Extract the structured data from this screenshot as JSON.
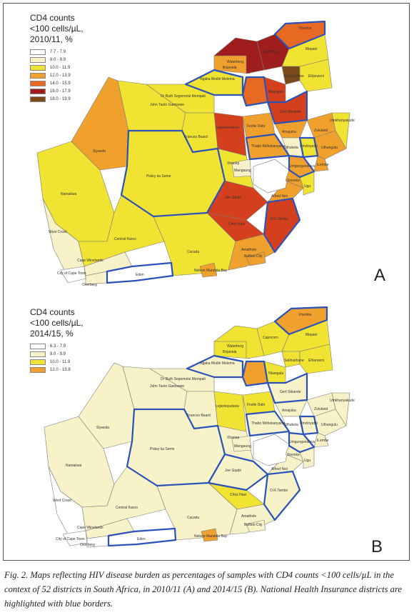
{
  "colors": {
    "c_white": "#ffffff",
    "c_lightyellow": "#f7f2c8",
    "c_yellow": "#f0e332",
    "c_orange": "#f0a02c",
    "c_orangered": "#e86a22",
    "c_red": "#d4401e",
    "c_darkred": "#a01d1d",
    "c_brown": "#7a4a1a",
    "nhi_border": "#2b52b8",
    "district_border": "#7a7a7a"
  },
  "panel_a": {
    "legend_title": "CD4 counts\n<100 cells/µL,\n2010/11, %",
    "legend": [
      {
        "label": "7.7 - 7.9",
        "color": "#ffffff"
      },
      {
        "label": "8.0 - 9.9",
        "color": "#f7f2c8"
      },
      {
        "label": "10.0 - 11.9",
        "color": "#f0e332"
      },
      {
        "label": "12.0 - 13.9",
        "color": "#f0a02c"
      },
      {
        "label": "14.0 - 15.9",
        "color": "#e86a22"
      },
      {
        "label": "16.0 - 17.9",
        "color": "#a01d1d"
      },
      {
        "label": "18.0 - 19.9",
        "color": "#7a4a1a"
      }
    ],
    "letter": "A",
    "districts": {
      "vhembe": "Vhembe",
      "capricorn": "Capricorn",
      "mopani": "Mopani",
      "ehlanzeni": "Ehlanzeni",
      "waterberg": "Waterberg",
      "sekhukhune": "Sekhukhune",
      "bojanala": "Bojanala",
      "ngaka": "Ngaka Modiri Molema",
      "nkangala": "Nkangala",
      "gertsibande": "Gert Sibande",
      "ruth": "Dr Ruth Segomotsi Mompati",
      "taolo": "John Taolo Gaetsewe",
      "lejweleputswa": "Lejweleputswa",
      "fezile": "Fezile Dabi",
      "thabo": "Thabo Mofutsanyane",
      "zululand": "Zululand",
      "umkhanyakude": "Umkhanyakude",
      "amajuba": "Amajuba",
      "uthukela": "Uthukela",
      "umzinyathi": "Umzinyathi",
      "uthungulu": "Uthungulu",
      "ilembe": "iLembe",
      "umgungundlovu": "Umgungundlovu",
      "sisonke": "Sisonke",
      "ugu": "Ugu",
      "ortambo": "O.R.Tambo",
      "alfrednzo": "Alfred Nzo",
      "siyanda": "Siyanda",
      "frances": "Frances Baard",
      "mangaung": "Mangaung",
      "xhariep": "Xhariep",
      "pixley": "Pixley ka Seme",
      "namakwa": "Namakwa",
      "joegqabi": "Joe Gqabi",
      "chrishani": "Chris Hani",
      "amathole": "Amathole",
      "buffalo": "Buffalo City",
      "cacadu": "Cacadu",
      "nelson": "Nelson Mandela Bay",
      "westcoast": "West Coast",
      "centralkaroo": "Central Karoo",
      "capewine": "Cape Winelands",
      "capetown": "City of Cape Town",
      "overberg": "Overberg",
      "eden": "Eden"
    }
  },
  "panel_b": {
    "legend_title": "CD4 counts\n<100 cells/µL,\n2014/15, %",
    "legend": [
      {
        "label": "6.3 - 7.9",
        "color": "#ffffff"
      },
      {
        "label": "8.0 - 9.9",
        "color": "#f7f2c8"
      },
      {
        "label": "10.0 - 11.9",
        "color": "#f0e332"
      },
      {
        "label": "12.0 - 13.8",
        "color": "#f0a02c"
      }
    ],
    "letter": "B",
    "districts": {
      "vhembe": "Vhembe",
      "capricorn": "Capricorn",
      "mopani": "Mopani",
      "ehlanzeni": "Ehlanzeni",
      "waterberg": "Waterberg",
      "sekhukhune": "Sekhukhune",
      "bojanala": "Bojanala",
      "ngaka": "Ngaka Modiri Molema",
      "nkangala": "Nkangala",
      "gertsibande": "Gert Sibande",
      "ruth": "Dr Ruth Segomotsi Mompati",
      "taolo": "John Taolo Gaetsewe",
      "lejweleputswa": "Lejweleputswa",
      "fezile": "Fezile Dabi",
      "thabo": "Thabo Mofutsanyane",
      "zululand": "Zululand",
      "umkhanyakude": "Umkhanyakude",
      "amajuba": "Amajuba",
      "uthukela": "Uthukela",
      "umzinyathi": "Umzinyathi",
      "uthungulu": "Uthungulu",
      "ilembe": "iLembe",
      "umgungundlovu": "Umgungundlovu",
      "sisonke": "Sisonke",
      "ugu": "Ugu",
      "ortambo": "O.R.Tambo",
      "alfrednzo": "Alfred Nzo",
      "siyanda": "Siyanda",
      "frances": "Frances Baard",
      "mangaung": "Mangaung",
      "xhariep": "Xhariep",
      "pixley": "Pixley ka Seme",
      "namakwa": "Namakwa",
      "joegqabi": "Joe Gqabi",
      "chrishani": "Chris Hani",
      "amathole": "Amathole",
      "buffalo": "Buffalo City",
      "cacadu": "Cacadu",
      "nelson": "Nelson Mandela Bay",
      "westcoast": "West Coast",
      "centralkaroo": "Central Karoo",
      "capewine": "Cape Winelands",
      "capetown": "City of Cape Town",
      "overberg": "Overberg",
      "eden": "Eden"
    }
  },
  "caption": {
    "label": "Fig. 2.",
    "text": "Maps reflecting HIV disease burden as percentages of samples with CD4 counts <100 cells/µL in the context of 52 districts in South Africa, in 2010/11 (A) and 2014/15 (B). National Health Insurance districts are highlighted with blue borders."
  }
}
